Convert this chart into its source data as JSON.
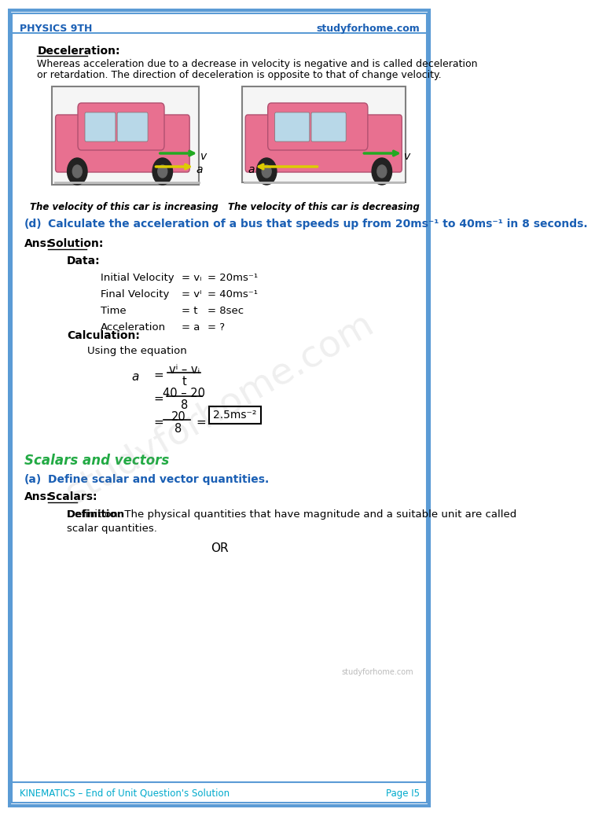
{
  "header_left": "PHYSICS 9TH",
  "header_right": "studyforhome.com",
  "footer_left": "KINEMATICS – End of Unit Question's Solution",
  "footer_right": "Page I5",
  "header_color": "#1a5fb4",
  "footer_color": "#00aacc",
  "border_color": "#5b9bd5",
  "bg_color": "#ffffff",
  "section_deceleration_title": "Deceleration:",
  "section_deceleration_text1": "Whereas acceleration due to a decrease in velocity is negative and is called deceleration",
  "section_deceleration_text2": "or retardation. The direction of deceleration is opposite to that of change velocity.",
  "caption_left": "The velocity of this car is increasing",
  "caption_right": "The velocity of this car is decreasing",
  "question_label": "(d)",
  "question_text": "Calculate the acceleration of a bus that speeds up from 20ms⁻¹ to 40ms⁻¹ in 8 seconds.",
  "ans_label": "Ans:",
  "solution_label": "Solution:",
  "data_label": "Data:",
  "row_labels": [
    "Initial Velocity",
    "Final Velocity",
    "Time",
    "Acceleration"
  ],
  "row_eq": [
    "= vᵢ",
    "= vⁱ",
    "= t",
    "= a"
  ],
  "row_vals": [
    "= 20ms⁻¹",
    "= 40ms⁻¹",
    "= 8sec",
    "= ?"
  ],
  "calc_label": "Calculation:",
  "calc_using": "Using the equation",
  "formula_a": "a",
  "formula_eq": "=",
  "formula_num": "vⁱ – vᵢ",
  "formula_den": "t",
  "step2_num": "40 – 20",
  "step2_den": "8",
  "step3_num": "20",
  "step3_den": "8",
  "result": "2.5ms⁻²",
  "scalars_title": "Scalars and vectors",
  "part_a_label": "(a)",
  "part_a_text": "Define scalar and vector quantities.",
  "ans2_label": "Ans:",
  "scalars_label": "Scalars:",
  "scalars_def_bold": "Definition",
  "scalars_def_text": ": The physical quantities that have magnitude and a suitable unit are called",
  "scalars_def_text2": "scalar quantities.",
  "or_text": "OR",
  "watermark": "studyforhome.com",
  "small_watermark": "studyforhome.com"
}
